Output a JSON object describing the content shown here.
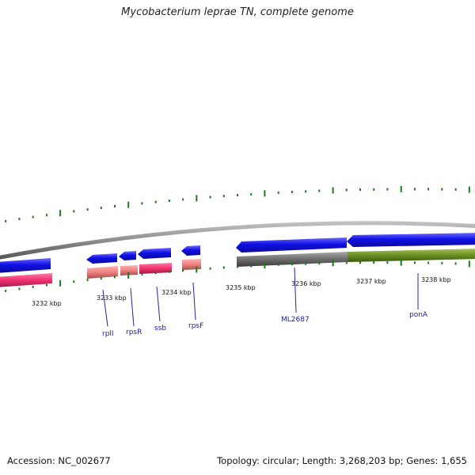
{
  "title": "Mycobacterium leprae TN, complete genome",
  "footer": {
    "accession": "Accession: NC_002677",
    "summary": "Topology: circular; Length: 3,268,203 bp; Genes: 1,655"
  },
  "colors": {
    "backbone": "#8c8c8c",
    "forward_gene": "#1010e6",
    "reverse_gene": "#1010e6",
    "rrna_pink": "#f0306e",
    "light_pink": "#f08080",
    "gray_feature": "#6e6e6e",
    "olive_feature": "#6b8e23",
    "tick": "#1a7a1a",
    "label_line": "#2222aa"
  },
  "scale_labels": [
    "3232 kbp",
    "3233 kbp",
    "3234 kbp",
    "3235 kbp",
    "3236 kbp",
    "3237 kbp",
    "3238 kbp"
  ],
  "genes": [
    "rplI",
    "rpsR",
    "ssb",
    "rpsF",
    "ML2687",
    "ponA"
  ]
}
